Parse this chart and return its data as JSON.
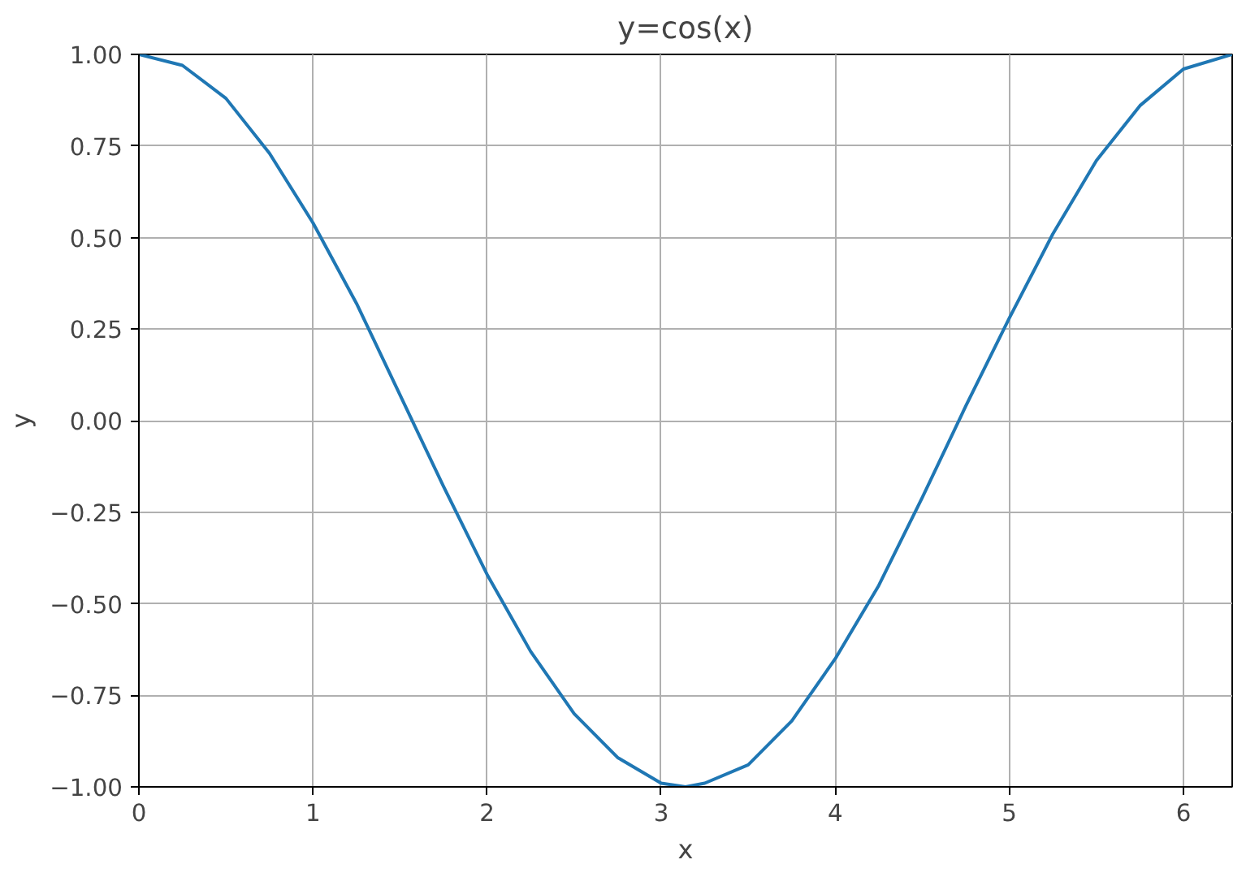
{
  "chart_data": {
    "type": "line",
    "title": "y=cos(x)",
    "xlabel": "x",
    "ylabel": "y",
    "x": [
      0,
      0.25,
      0.5,
      0.75,
      1,
      1.25,
      1.5,
      1.75,
      2,
      2.25,
      2.5,
      2.75,
      3,
      3.14,
      3.25,
      3.5,
      3.75,
      4,
      4.25,
      4.5,
      4.75,
      5,
      5.25,
      5.5,
      5.75,
      6,
      6.28
    ],
    "series": [
      {
        "color": "#1f77b4",
        "values": [
          1.0,
          0.97,
          0.88,
          0.73,
          0.54,
          0.32,
          0.07,
          -0.18,
          -0.42,
          -0.63,
          -0.8,
          -0.92,
          -0.99,
          -1.0,
          -0.99,
          -0.94,
          -0.82,
          -0.65,
          -0.45,
          -0.21,
          0.04,
          0.28,
          0.51,
          0.71,
          0.86,
          0.96,
          1.0
        ]
      }
    ],
    "xlim": [
      0,
      6.28
    ],
    "ylim": [
      -1,
      1
    ],
    "xticks": [
      0,
      1,
      2,
      3,
      4,
      5,
      6
    ],
    "yticks": [
      {
        "value": -1,
        "label": "−1.00"
      },
      {
        "value": -0.75,
        "label": "−0.75"
      },
      {
        "value": -0.5,
        "label": "−0.50"
      },
      {
        "value": -0.25,
        "label": "−0.25"
      },
      {
        "value": 0,
        "label": "0.00"
      },
      {
        "value": 0.25,
        "label": "0.25"
      },
      {
        "value": 0.5,
        "label": "0.50"
      },
      {
        "value": 0.75,
        "label": "0.75"
      },
      {
        "value": 1,
        "label": "1.00"
      }
    ],
    "grid": true,
    "line_style": "solid",
    "marker": "none"
  }
}
